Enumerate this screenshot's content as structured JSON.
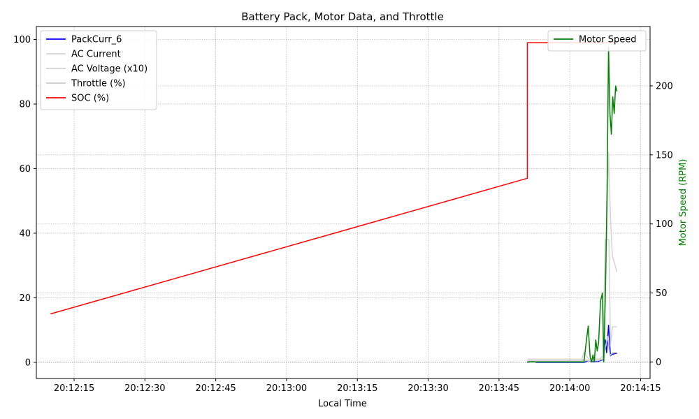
{
  "chart_data": {
    "type": "line",
    "title": "Battery Pack, Motor Data, and Throttle",
    "xlabel": "Local Time",
    "ylabel_left": "",
    "ylabel_right": "Motor Speed (RPM)",
    "xlim": [
      "20:12:07",
      "20:14:17"
    ],
    "ylim_left": [
      -5,
      104
    ],
    "ylim_right": [
      -12,
      243
    ],
    "x_ticks": [
      "20:12:15",
      "20:12:30",
      "20:12:45",
      "20:13:00",
      "20:13:15",
      "20:13:30",
      "20:13:45",
      "20:14:00",
      "20:14:15"
    ],
    "y_ticks_left": [
      0,
      20,
      40,
      60,
      80,
      100
    ],
    "y_ticks_right": [
      0,
      50,
      100,
      150,
      200
    ],
    "grid": true,
    "legend_left_position": "top-left",
    "legend_right_position": "top-right",
    "series": [
      {
        "name": "PackCurr_6",
        "axis": "left",
        "color": "#0000ff",
        "points": [
          [
            "20:13:51",
            0
          ],
          [
            "20:13:52",
            0.3
          ],
          [
            "20:13:53",
            0
          ],
          [
            "20:14:03",
            0
          ],
          [
            "20:14:04",
            0.5
          ],
          [
            "20:14:05",
            0.2
          ],
          [
            "20:14:06",
            0.3
          ],
          [
            "20:14:07",
            0.8
          ],
          [
            "20:14:07.5",
            7
          ],
          [
            "20:14:07.8",
            3
          ],
          [
            "20:14:08.2",
            11.5
          ],
          [
            "20:14:08.6",
            2
          ],
          [
            "20:14:09",
            2.5
          ],
          [
            "20:14:10",
            2.8
          ]
        ]
      },
      {
        "name": "AC Current",
        "axis": "left",
        "color": "#d3d3d3",
        "points": [
          [
            "20:13:51",
            1
          ],
          [
            "20:14:03",
            1
          ],
          [
            "20:14:04",
            0.5
          ],
          [
            "20:14:06",
            0.5
          ],
          [
            "20:14:07",
            2
          ],
          [
            "20:14:07.8",
            38
          ],
          [
            "20:14:08.2",
            65
          ],
          [
            "20:14:08.6",
            45
          ],
          [
            "20:14:09",
            33
          ],
          [
            "20:14:10",
            28
          ]
        ]
      },
      {
        "name": "AC Voltage (x10)",
        "axis": "left",
        "color": "#d3d3d3",
        "points": [
          [
            "20:13:51",
            1
          ],
          [
            "20:14:02.5",
            1
          ],
          [
            "20:14:03",
            3
          ],
          [
            "20:14:04",
            1
          ],
          [
            "20:14:07",
            1
          ],
          [
            "20:14:07.5",
            38
          ],
          [
            "20:14:08.3",
            38
          ],
          [
            "20:14:08.6",
            5
          ],
          [
            "20:14:09",
            11
          ],
          [
            "20:14:10",
            11
          ]
        ]
      },
      {
        "name": "Throttle (%)",
        "axis": "left",
        "color": "#c8c8c8",
        "points": [
          [
            "20:13:51",
            0.5
          ],
          [
            "20:14:03",
            0.5
          ],
          [
            "20:14:06",
            0.5
          ],
          [
            "20:14:07",
            1
          ],
          [
            "20:14:08",
            8
          ],
          [
            "20:14:08.5",
            2
          ],
          [
            "20:14:09",
            3
          ],
          [
            "20:14:10",
            3
          ]
        ]
      },
      {
        "name": "SOC (%)",
        "axis": "left",
        "color": "#ff0000",
        "points": [
          [
            "20:12:10",
            15
          ],
          [
            "20:13:51",
            57
          ],
          [
            "20:13:51",
            99
          ],
          [
            "20:14:10",
            99
          ]
        ]
      },
      {
        "name": "Motor Speed",
        "axis": "right",
        "color": "#008000",
        "points": [
          [
            "20:13:51",
            0
          ],
          [
            "20:14:03",
            0
          ],
          [
            "20:14:03.5",
            15
          ],
          [
            "20:14:03.9",
            26
          ],
          [
            "20:14:04.3",
            4
          ],
          [
            "20:14:04.6",
            0
          ],
          [
            "20:14:04.9",
            5
          ],
          [
            "20:14:05.2",
            0
          ],
          [
            "20:14:05.5",
            16
          ],
          [
            "20:14:05.8",
            8
          ],
          [
            "20:14:06.1",
            14
          ],
          [
            "20:14:06.5",
            44
          ],
          [
            "20:14:06.9",
            50
          ],
          [
            "20:14:07.2",
            0
          ],
          [
            "20:14:07.6",
            60
          ],
          [
            "20:14:07.9",
            125
          ],
          [
            "20:14:08.2",
            228
          ],
          [
            "20:14:08.5",
            180
          ],
          [
            "20:14:08.8",
            165
          ],
          [
            "20:14:09.1",
            192
          ],
          [
            "20:14:09.4",
            180
          ],
          [
            "20:14:09.7",
            200
          ],
          [
            "20:14:10",
            196
          ]
        ]
      }
    ]
  }
}
